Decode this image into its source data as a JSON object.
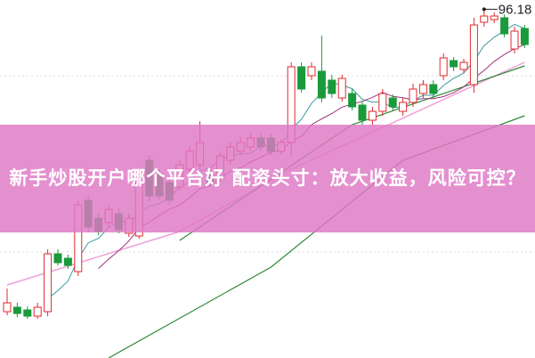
{
  "banner": {
    "title": "新手炒股开户哪个平台好 配资头寸：放大收益，风险可控？"
  },
  "chart_data": {
    "type": "candlestick",
    "title": "",
    "colors": {
      "up": "#e0282e",
      "down": "#1a9a3a",
      "ma5": "#3a9aa0",
      "ma10": "#a0307a",
      "ma_pink": "#f0a0d8",
      "ma_green": "#2e8a3a",
      "banner": "#de78c4"
    },
    "high_label": "96.18",
    "grid": false,
    "candles": [
      [
        79.2,
        79.7,
        80.5,
        79.0
      ],
      [
        79.45,
        79.1,
        79.7,
        78.9
      ],
      [
        79.3,
        78.95,
        79.5,
        78.8
      ],
      [
        78.95,
        79.45,
        79.7,
        78.8
      ],
      [
        79.2,
        82.45,
        82.7,
        78.95
      ],
      [
        82.45,
        81.95,
        82.7,
        81.8
      ],
      [
        82.2,
        81.8,
        82.4,
        81.6
      ],
      [
        81.45,
        85.2,
        85.45,
        81.2
      ],
      [
        85.45,
        83.95,
        85.7,
        83.7
      ],
      [
        84.45,
        83.7,
        84.7,
        83.5
      ],
      [
        84.2,
        84.95,
        85.2,
        83.9
      ],
      [
        84.7,
        83.8,
        85.0,
        83.6
      ],
      [
        83.6,
        84.45,
        84.7,
        83.4
      ],
      [
        83.45,
        86.7,
        87.0,
        83.3
      ],
      [
        87.7,
        85.7,
        88.0,
        85.4
      ],
      [
        86.95,
        85.7,
        87.2,
        85.5
      ],
      [
        86.45,
        85.45,
        86.7,
        85.2
      ],
      [
        86.2,
        87.45,
        87.7,
        86.0
      ],
      [
        87.2,
        88.2,
        88.5,
        87.0
      ],
      [
        87.45,
        88.7,
        89.9,
        87.2
      ],
      [
        86.95,
        86.45,
        87.2,
        86.2
      ],
      [
        86.7,
        87.95,
        88.2,
        86.5
      ],
      [
        87.7,
        88.45,
        88.7,
        87.5
      ],
      [
        88.2,
        88.7,
        89.0,
        88.0
      ],
      [
        88.45,
        88.95,
        89.2,
        88.2
      ],
      [
        88.95,
        88.45,
        89.2,
        88.2
      ],
      [
        88.95,
        88.2,
        89.2,
        88.0
      ],
      [
        88.2,
        88.7,
        88.9,
        88.0
      ],
      [
        88.7,
        92.95,
        93.2,
        87.95
      ],
      [
        92.95,
        91.7,
        93.2,
        91.5
      ],
      [
        92.45,
        92.95,
        93.2,
        92.2
      ],
      [
        92.7,
        91.2,
        94.7,
        90.95
      ],
      [
        92.2,
        91.45,
        92.5,
        91.2
      ],
      [
        91.2,
        92.3,
        92.5,
        91.0
      ],
      [
        91.45,
        90.7,
        91.7,
        90.5
      ],
      [
        90.8,
        89.95,
        91.0,
        89.7
      ],
      [
        89.95,
        90.45,
        90.7,
        89.7
      ],
      [
        90.45,
        91.45,
        91.7,
        90.2
      ],
      [
        91.2,
        90.7,
        91.4,
        90.5
      ],
      [
        90.45,
        90.95,
        91.2,
        90.2
      ],
      [
        90.95,
        91.7,
        92.0,
        90.7
      ],
      [
        91.45,
        91.95,
        92.2,
        91.2
      ],
      [
        91.95,
        91.45,
        92.2,
        91.2
      ],
      [
        92.45,
        93.45,
        93.7,
        92.2
      ],
      [
        93.3,
        92.95,
        93.5,
        92.7
      ],
      [
        92.8,
        93.2,
        93.4,
        92.6
      ],
      [
        91.95,
        95.3,
        95.7,
        91.5
      ],
      [
        95.45,
        95.8,
        96.18,
        95.2
      ],
      [
        95.6,
        95.8,
        96.0,
        95.4
      ],
      [
        95.7,
        94.8,
        95.9,
        94.6
      ],
      [
        93.95,
        94.95,
        95.2,
        93.7
      ],
      [
        95.1,
        94.2,
        95.3,
        94.0
      ]
    ],
    "ma_pink": [
      [
        0,
        80.7
      ],
      [
        17,
        83.7
      ],
      [
        28,
        87.2
      ],
      [
        51,
        93.2
      ]
    ],
    "ma_green_long": [
      [
        10,
        76.6
      ],
      [
        26,
        81.7
      ],
      [
        39,
        87.7
      ],
      [
        51,
        90.2
      ]
    ],
    "ma_green_mid": [
      [
        17,
        83.2
      ],
      [
        34,
        89.7
      ],
      [
        51,
        93.0
      ]
    ]
  }
}
